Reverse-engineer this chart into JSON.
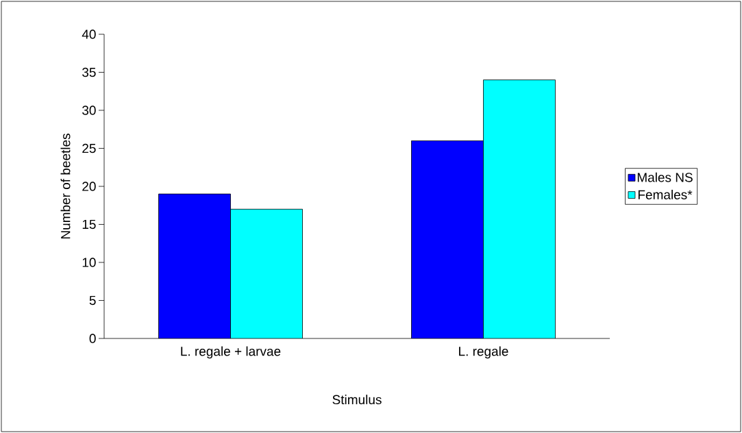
{
  "chart_data": {
    "type": "bar",
    "xlabel": "Stimulus",
    "ylabel": "Number of beetles",
    "categories": [
      "L. regale + larvae",
      "L. regale"
    ],
    "series": [
      {
        "name": "Males NS",
        "color": "#0000ff",
        "values": [
          19,
          26
        ]
      },
      {
        "name": "Females*",
        "color": "#00ffff",
        "values": [
          17,
          34
        ]
      }
    ],
    "ylim": [
      0,
      40
    ],
    "yticks": [
      0,
      5,
      10,
      15,
      20,
      25,
      30,
      35,
      40
    ],
    "grid": false,
    "legend": "right"
  }
}
